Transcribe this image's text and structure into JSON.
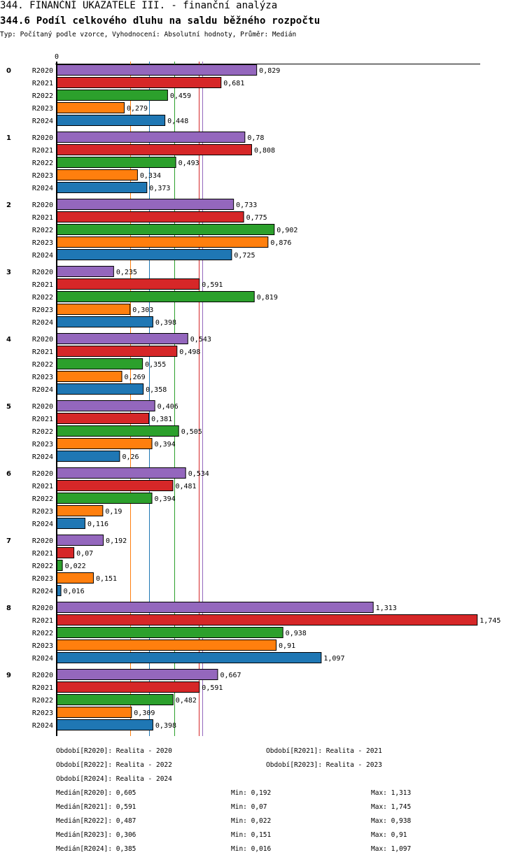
{
  "header": {
    "title": "344. FINANČNÍ UKAZATELE III. - finanční analýza",
    "subtitle": "344.6 Podíl celkového dluhu na saldu běžného rozpočtu",
    "info": "Typ: Počítaný podle vzorce, Vyhodnocení: Absolutní hodnoty, Průměr: Medián"
  },
  "chart_data": {
    "type": "bar",
    "orientation": "horizontal",
    "title": "344.6 Podíl celkového dluhu na saldu běžného rozpočtu",
    "axis_zero_label": "0",
    "categories": [
      "0",
      "1",
      "2",
      "3",
      "4",
      "5",
      "6",
      "7",
      "8",
      "9"
    ],
    "series": [
      {
        "name": "R2020",
        "color": "#9467bd",
        "values": [
          0.829,
          0.78,
          0.733,
          0.235,
          0.543,
          0.406,
          0.534,
          0.192,
          1.313,
          0.667
        ],
        "labels": [
          "0,829",
          "0,78",
          "0,733",
          "0,235",
          "0,543",
          "0,406",
          "0,534",
          "0,192",
          "1,313",
          "0,667"
        ]
      },
      {
        "name": "R2021",
        "color": "#d62728",
        "values": [
          0.681,
          0.808,
          0.775,
          0.591,
          0.498,
          0.381,
          0.481,
          0.07,
          1.745,
          0.591
        ],
        "labels": [
          "0,681",
          "0,808",
          "0,775",
          "0,591",
          "0,498",
          "0,381",
          "0,481",
          "0,07",
          "1,745",
          "0,591"
        ]
      },
      {
        "name": "R2022",
        "color": "#2ca02c",
        "values": [
          0.459,
          0.493,
          0.902,
          0.819,
          0.355,
          0.505,
          0.394,
          0.022,
          0.938,
          0.482
        ],
        "labels": [
          "0,459",
          "0,493",
          "0,902",
          "0,819",
          "0,355",
          "0,505",
          "0,394",
          "0,022",
          "0,938",
          "0,482"
        ]
      },
      {
        "name": "R2023",
        "color": "#ff7f0e",
        "values": [
          0.279,
          0.334,
          0.876,
          0.303,
          0.269,
          0.394,
          0.19,
          0.151,
          0.91,
          0.309
        ],
        "labels": [
          "0,279",
          "0,334",
          "0,876",
          "0,303",
          "0,269",
          "0,394",
          "0,19",
          "0,151",
          "0,91",
          "0,309"
        ]
      },
      {
        "name": "R2024",
        "color": "#1f77b4",
        "values": [
          0.448,
          0.373,
          0.725,
          0.398,
          0.358,
          0.26,
          0.116,
          0.016,
          1.097,
          0.398
        ],
        "labels": [
          "0,448",
          "0,373",
          "0,725",
          "0,398",
          "0,358",
          "0,26",
          "0,116",
          "0,016",
          "1,097",
          "0,398"
        ]
      }
    ],
    "medians": [
      {
        "name": "R2020",
        "value": 0.605,
        "color": "#9467bd"
      },
      {
        "name": "R2021",
        "value": 0.591,
        "color": "#d62728"
      },
      {
        "name": "R2022",
        "value": 0.487,
        "color": "#2ca02c"
      },
      {
        "name": "R2023",
        "value": 0.306,
        "color": "#ff7f0e"
      },
      {
        "name": "R2024",
        "value": 0.385,
        "color": "#1f77b4"
      }
    ],
    "xlim": [
      0,
      1.745
    ],
    "grid": false,
    "legend": "bottom"
  },
  "legend": {
    "periods": [
      "Období[R2020]: Realita - 2020",
      "Období[R2021]: Realita - 2021",
      "Období[R2022]: Realita - 2022",
      "Období[R2023]: Realita - 2023",
      "Období[R2024]: Realita - 2024"
    ],
    "stats": [
      {
        "median": "Medián[R2020]: 0,605",
        "min": "Min: 0,192",
        "max": "Max: 1,313"
      },
      {
        "median": "Medián[R2021]: 0,591",
        "min": "Min: 0,07",
        "max": "Max: 1,745"
      },
      {
        "median": "Medián[R2022]: 0,487",
        "min": "Min: 0,022",
        "max": "Max: 0,938"
      },
      {
        "median": "Medián[R2023]: 0,306",
        "min": "Min: 0,151",
        "max": "Max: 0,91"
      },
      {
        "median": "Medián[R2024]: 0,385",
        "min": "Min: 0,016",
        "max": "Max: 1,097"
      }
    ]
  }
}
